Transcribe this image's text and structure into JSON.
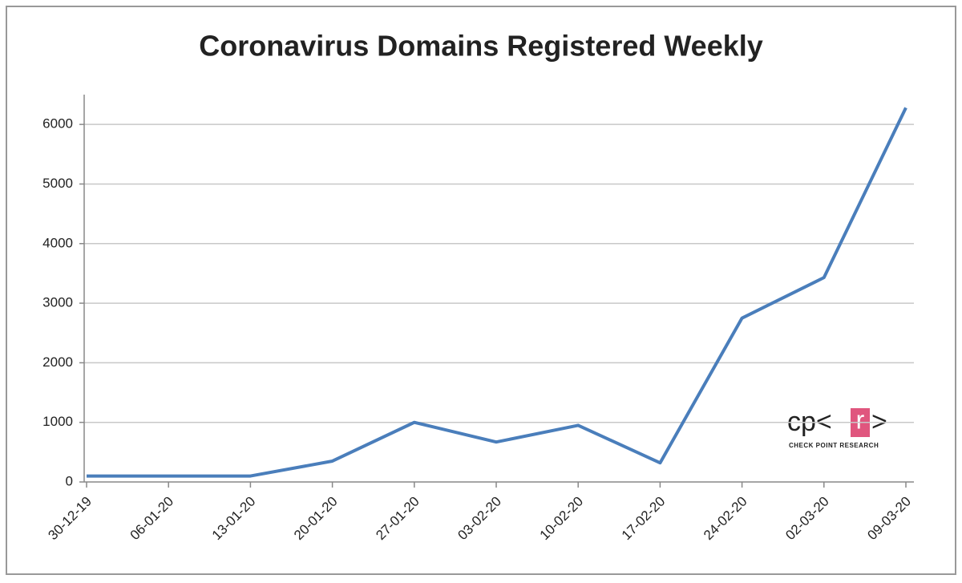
{
  "chart_data": {
    "type": "line",
    "title": "Coronavirus Domains Registered Weekly",
    "categories": [
      "30-12-19",
      "06-01-20",
      "13-01-20",
      "20-01-20",
      "27-01-20",
      "03-02-20",
      "10-02-20",
      "17-02-20",
      "24-02-20",
      "02-03-20",
      "09-03-20"
    ],
    "values": [
      100,
      100,
      100,
      350,
      1000,
      670,
      950,
      320,
      2750,
      3430,
      6280
    ],
    "color": "#4a7ebb",
    "ylim": [
      0,
      6500
    ],
    "yticks": [
      0,
      1000,
      2000,
      3000,
      4000,
      5000,
      6000
    ],
    "grid": true
  },
  "logo": {
    "text_left": "cp<",
    "highlight": "r",
    "text_right": ">",
    "caption": "CHECK POINT RESEARCH"
  }
}
